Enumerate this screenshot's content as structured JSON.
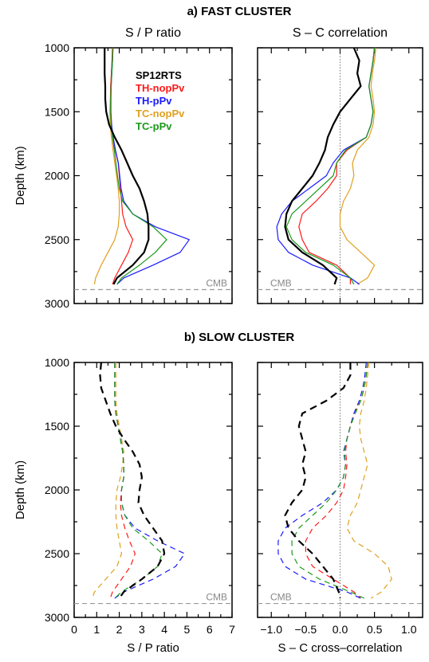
{
  "figure": {
    "title_a": "a) FAST CLUSTER",
    "title_b": "b) SLOW CLUSTER",
    "ylabel": "Depth (km)",
    "cmb_label": "CMB"
  },
  "colors": {
    "SP12RTS": "#000000",
    "TH-nopPv": "#ff1a1a",
    "TH-pPv": "#1a1aff",
    "TC-nopPv": "#e0a020",
    "TC-pPv": "#1a9a1a",
    "cmb": "#999999"
  },
  "chart_data": [
    {
      "id": "a-left",
      "type": "line",
      "title": "S / P ratio",
      "ylabel": "Depth (km)",
      "ylim": [
        3000,
        1000
      ],
      "xlim": [
        0,
        7
      ],
      "xlabel": "",
      "line_style": "solid",
      "cmb_depth": 2891,
      "legend": [
        "SP12RTS",
        "TH-nopPv",
        "TH-pPv",
        "TC-nopPv",
        "TC-pPv"
      ],
      "legend_position": "top-right",
      "y": [
        1000,
        1100,
        1200,
        1300,
        1400,
        1500,
        1600,
        1700,
        1800,
        1900,
        2000,
        2100,
        2200,
        2300,
        2400,
        2500,
        2600,
        2700,
        2800,
        2850
      ],
      "series": [
        {
          "name": "SP12RTS",
          "values": [
            1.35,
            1.35,
            1.35,
            1.38,
            1.38,
            1.42,
            1.55,
            1.8,
            2.1,
            2.35,
            2.6,
            2.9,
            3.1,
            3.25,
            3.3,
            3.3,
            3.1,
            2.6,
            1.9,
            1.75
          ]
        },
        {
          "name": "TH-nopPv",
          "values": [
            1.7,
            1.68,
            1.65,
            1.62,
            1.62,
            1.62,
            1.65,
            1.72,
            1.82,
            1.95,
            2.0,
            2.05,
            2.1,
            2.15,
            2.3,
            2.6,
            2.4,
            2.1,
            1.8,
            1.7
          ]
        },
        {
          "name": "TH-pPv",
          "values": [
            1.72,
            1.7,
            1.67,
            1.64,
            1.63,
            1.63,
            1.66,
            1.73,
            1.83,
            1.96,
            2.02,
            2.08,
            2.2,
            2.6,
            3.6,
            5.1,
            4.7,
            3.5,
            2.2,
            1.9
          ]
        },
        {
          "name": "TC-nopPv",
          "values": [
            1.7,
            1.68,
            1.65,
            1.62,
            1.6,
            1.58,
            1.6,
            1.65,
            1.72,
            1.8,
            1.88,
            1.95,
            2.0,
            2.0,
            1.95,
            1.8,
            1.5,
            1.2,
            0.95,
            0.9
          ]
        },
        {
          "name": "TC-pPv",
          "values": [
            1.72,
            1.7,
            1.67,
            1.64,
            1.62,
            1.62,
            1.64,
            1.7,
            1.78,
            1.85,
            1.92,
            2.0,
            2.15,
            2.6,
            3.5,
            4.1,
            3.6,
            2.9,
            2.1,
            1.9
          ]
        }
      ]
    },
    {
      "id": "a-right",
      "type": "line",
      "title": "S – C correlation",
      "ylim": [
        3000,
        1000
      ],
      "xlim": [
        -1.2,
        1.2
      ],
      "xlabel": "",
      "line_style": "solid",
      "cmb_depth": 2891,
      "y": [
        1000,
        1100,
        1200,
        1300,
        1400,
        1500,
        1600,
        1700,
        1800,
        1900,
        2000,
        2100,
        2200,
        2300,
        2400,
        2500,
        2600,
        2700,
        2800,
        2850
      ],
      "series": [
        {
          "name": "SP12RTS",
          "values": [
            0.2,
            0.28,
            0.25,
            0.3,
            0.15,
            0.0,
            -0.1,
            -0.18,
            -0.22,
            -0.3,
            -0.4,
            -0.55,
            -0.7,
            -0.78,
            -0.8,
            -0.75,
            -0.55,
            -0.25,
            -0.05,
            -0.08
          ]
        },
        {
          "name": "TH-nopPv",
          "values": [
            0.5,
            0.48,
            0.45,
            0.42,
            0.45,
            0.48,
            0.45,
            0.38,
            0.1,
            -0.05,
            -0.05,
            -0.18,
            -0.35,
            -0.55,
            -0.6,
            -0.55,
            -0.45,
            -0.05,
            0.15,
            0.15
          ]
        },
        {
          "name": "TH-pPv",
          "values": [
            0.5,
            0.48,
            0.45,
            0.42,
            0.45,
            0.48,
            0.45,
            0.38,
            0.05,
            -0.1,
            -0.2,
            -0.45,
            -0.7,
            -0.85,
            -0.92,
            -0.9,
            -0.75,
            -0.4,
            0.15,
            0.28
          ]
        },
        {
          "name": "TC-nopPv",
          "values": [
            0.52,
            0.5,
            0.47,
            0.45,
            0.48,
            0.5,
            0.48,
            0.42,
            0.25,
            0.18,
            0.2,
            0.15,
            0.05,
            0.0,
            0.0,
            0.1,
            0.3,
            0.5,
            0.4,
            0.25
          ]
        },
        {
          "name": "TC-pPv",
          "values": [
            0.5,
            0.48,
            0.45,
            0.42,
            0.45,
            0.48,
            0.45,
            0.38,
            0.08,
            -0.05,
            -0.1,
            -0.3,
            -0.5,
            -0.7,
            -0.78,
            -0.7,
            -0.5,
            -0.1,
            0.15,
            0.2
          ]
        }
      ]
    },
    {
      "id": "b-left",
      "type": "line",
      "title": "",
      "ylabel": "Depth (km)",
      "ylim": [
        3000,
        1000
      ],
      "xlim": [
        0,
        7
      ],
      "xlabel": "S / P ratio",
      "xticks": [
        "0",
        "1",
        "2",
        "3",
        "4",
        "5",
        "6",
        "7"
      ],
      "line_style": "dashed",
      "cmb_depth": 2891,
      "y": [
        1000,
        1100,
        1200,
        1300,
        1400,
        1500,
        1600,
        1700,
        1800,
        1900,
        2000,
        2100,
        2200,
        2300,
        2400,
        2500,
        2600,
        2700,
        2800,
        2850
      ],
      "series": [
        {
          "name": "SP12RTS",
          "values": [
            1.2,
            1.15,
            1.2,
            1.4,
            1.6,
            1.85,
            2.2,
            2.6,
            2.9,
            3.0,
            2.9,
            2.85,
            3.1,
            3.5,
            3.9,
            4.0,
            3.7,
            3.0,
            2.2,
            2.0
          ]
        },
        {
          "name": "TH-nopPv",
          "values": [
            1.8,
            1.8,
            1.8,
            1.8,
            1.85,
            1.95,
            2.05,
            2.15,
            2.2,
            2.2,
            2.1,
            2.05,
            2.1,
            2.25,
            2.45,
            2.7,
            2.5,
            2.1,
            1.7,
            1.6
          ]
        },
        {
          "name": "TH-pPv",
          "values": [
            1.8,
            1.8,
            1.8,
            1.8,
            1.85,
            1.95,
            2.05,
            2.15,
            2.2,
            2.2,
            2.1,
            2.1,
            2.25,
            2.7,
            3.7,
            4.9,
            4.5,
            3.5,
            2.2,
            1.8
          ]
        },
        {
          "name": "TC-nopPv",
          "values": [
            1.85,
            1.85,
            1.85,
            1.85,
            1.9,
            2.0,
            2.1,
            2.2,
            2.15,
            2.05,
            1.9,
            1.85,
            1.85,
            1.9,
            2.0,
            2.1,
            1.9,
            1.4,
            0.9,
            0.8
          ]
        },
        {
          "name": "TC-pPv",
          "values": [
            1.8,
            1.8,
            1.8,
            1.8,
            1.85,
            1.95,
            2.05,
            2.15,
            2.2,
            2.2,
            2.1,
            2.1,
            2.25,
            2.6,
            3.3,
            3.9,
            3.7,
            3.0,
            2.1,
            1.8
          ]
        }
      ]
    },
    {
      "id": "b-right",
      "type": "line",
      "title": "",
      "ylim": [
        3000,
        1000
      ],
      "xlim": [
        -1.2,
        1.2
      ],
      "xlabel": "S – C cross–correlation",
      "xticks": [
        "−1.0",
        "−0.5",
        "0.0",
        "0.5",
        "1.0"
      ],
      "line_style": "dashed",
      "cmb_depth": 2891,
      "y": [
        1000,
        1100,
        1200,
        1300,
        1400,
        1500,
        1600,
        1700,
        1800,
        1900,
        2000,
        2100,
        2200,
        2300,
        2400,
        2500,
        2600,
        2700,
        2800,
        2850
      ],
      "series": [
        {
          "name": "SP12RTS",
          "values": [
            0.15,
            0.15,
            0.05,
            -0.2,
            -0.55,
            -0.6,
            -0.55,
            -0.5,
            -0.55,
            -0.5,
            -0.55,
            -0.7,
            -0.8,
            -0.75,
            -0.6,
            -0.4,
            -0.25,
            -0.1,
            -0.02,
            0.0
          ]
        },
        {
          "name": "TH-nopPv",
          "values": [
            0.4,
            0.38,
            0.35,
            0.3,
            0.2,
            0.15,
            0.1,
            0.08,
            0.1,
            0.08,
            0.05,
            -0.05,
            -0.2,
            -0.4,
            -0.5,
            -0.5,
            -0.4,
            -0.1,
            0.2,
            0.3
          ]
        },
        {
          "name": "TH-pPv",
          "values": [
            0.38,
            0.36,
            0.33,
            0.28,
            0.2,
            0.15,
            0.1,
            0.05,
            0.08,
            0.05,
            -0.05,
            -0.25,
            -0.55,
            -0.8,
            -0.9,
            -0.9,
            -0.8,
            -0.5,
            0.1,
            0.3
          ]
        },
        {
          "name": "TC-nopPv",
          "values": [
            0.42,
            0.4,
            0.38,
            0.35,
            0.3,
            0.28,
            0.3,
            0.35,
            0.4,
            0.35,
            0.3,
            0.25,
            0.15,
            0.1,
            0.2,
            0.5,
            0.7,
            0.75,
            0.6,
            0.45
          ]
        },
        {
          "name": "TC-pPv",
          "values": [
            0.4,
            0.38,
            0.35,
            0.3,
            0.22,
            0.15,
            0.1,
            0.06,
            0.08,
            0.05,
            -0.05,
            -0.2,
            -0.4,
            -0.6,
            -0.7,
            -0.7,
            -0.6,
            -0.3,
            0.15,
            0.35
          ]
        }
      ]
    }
  ]
}
